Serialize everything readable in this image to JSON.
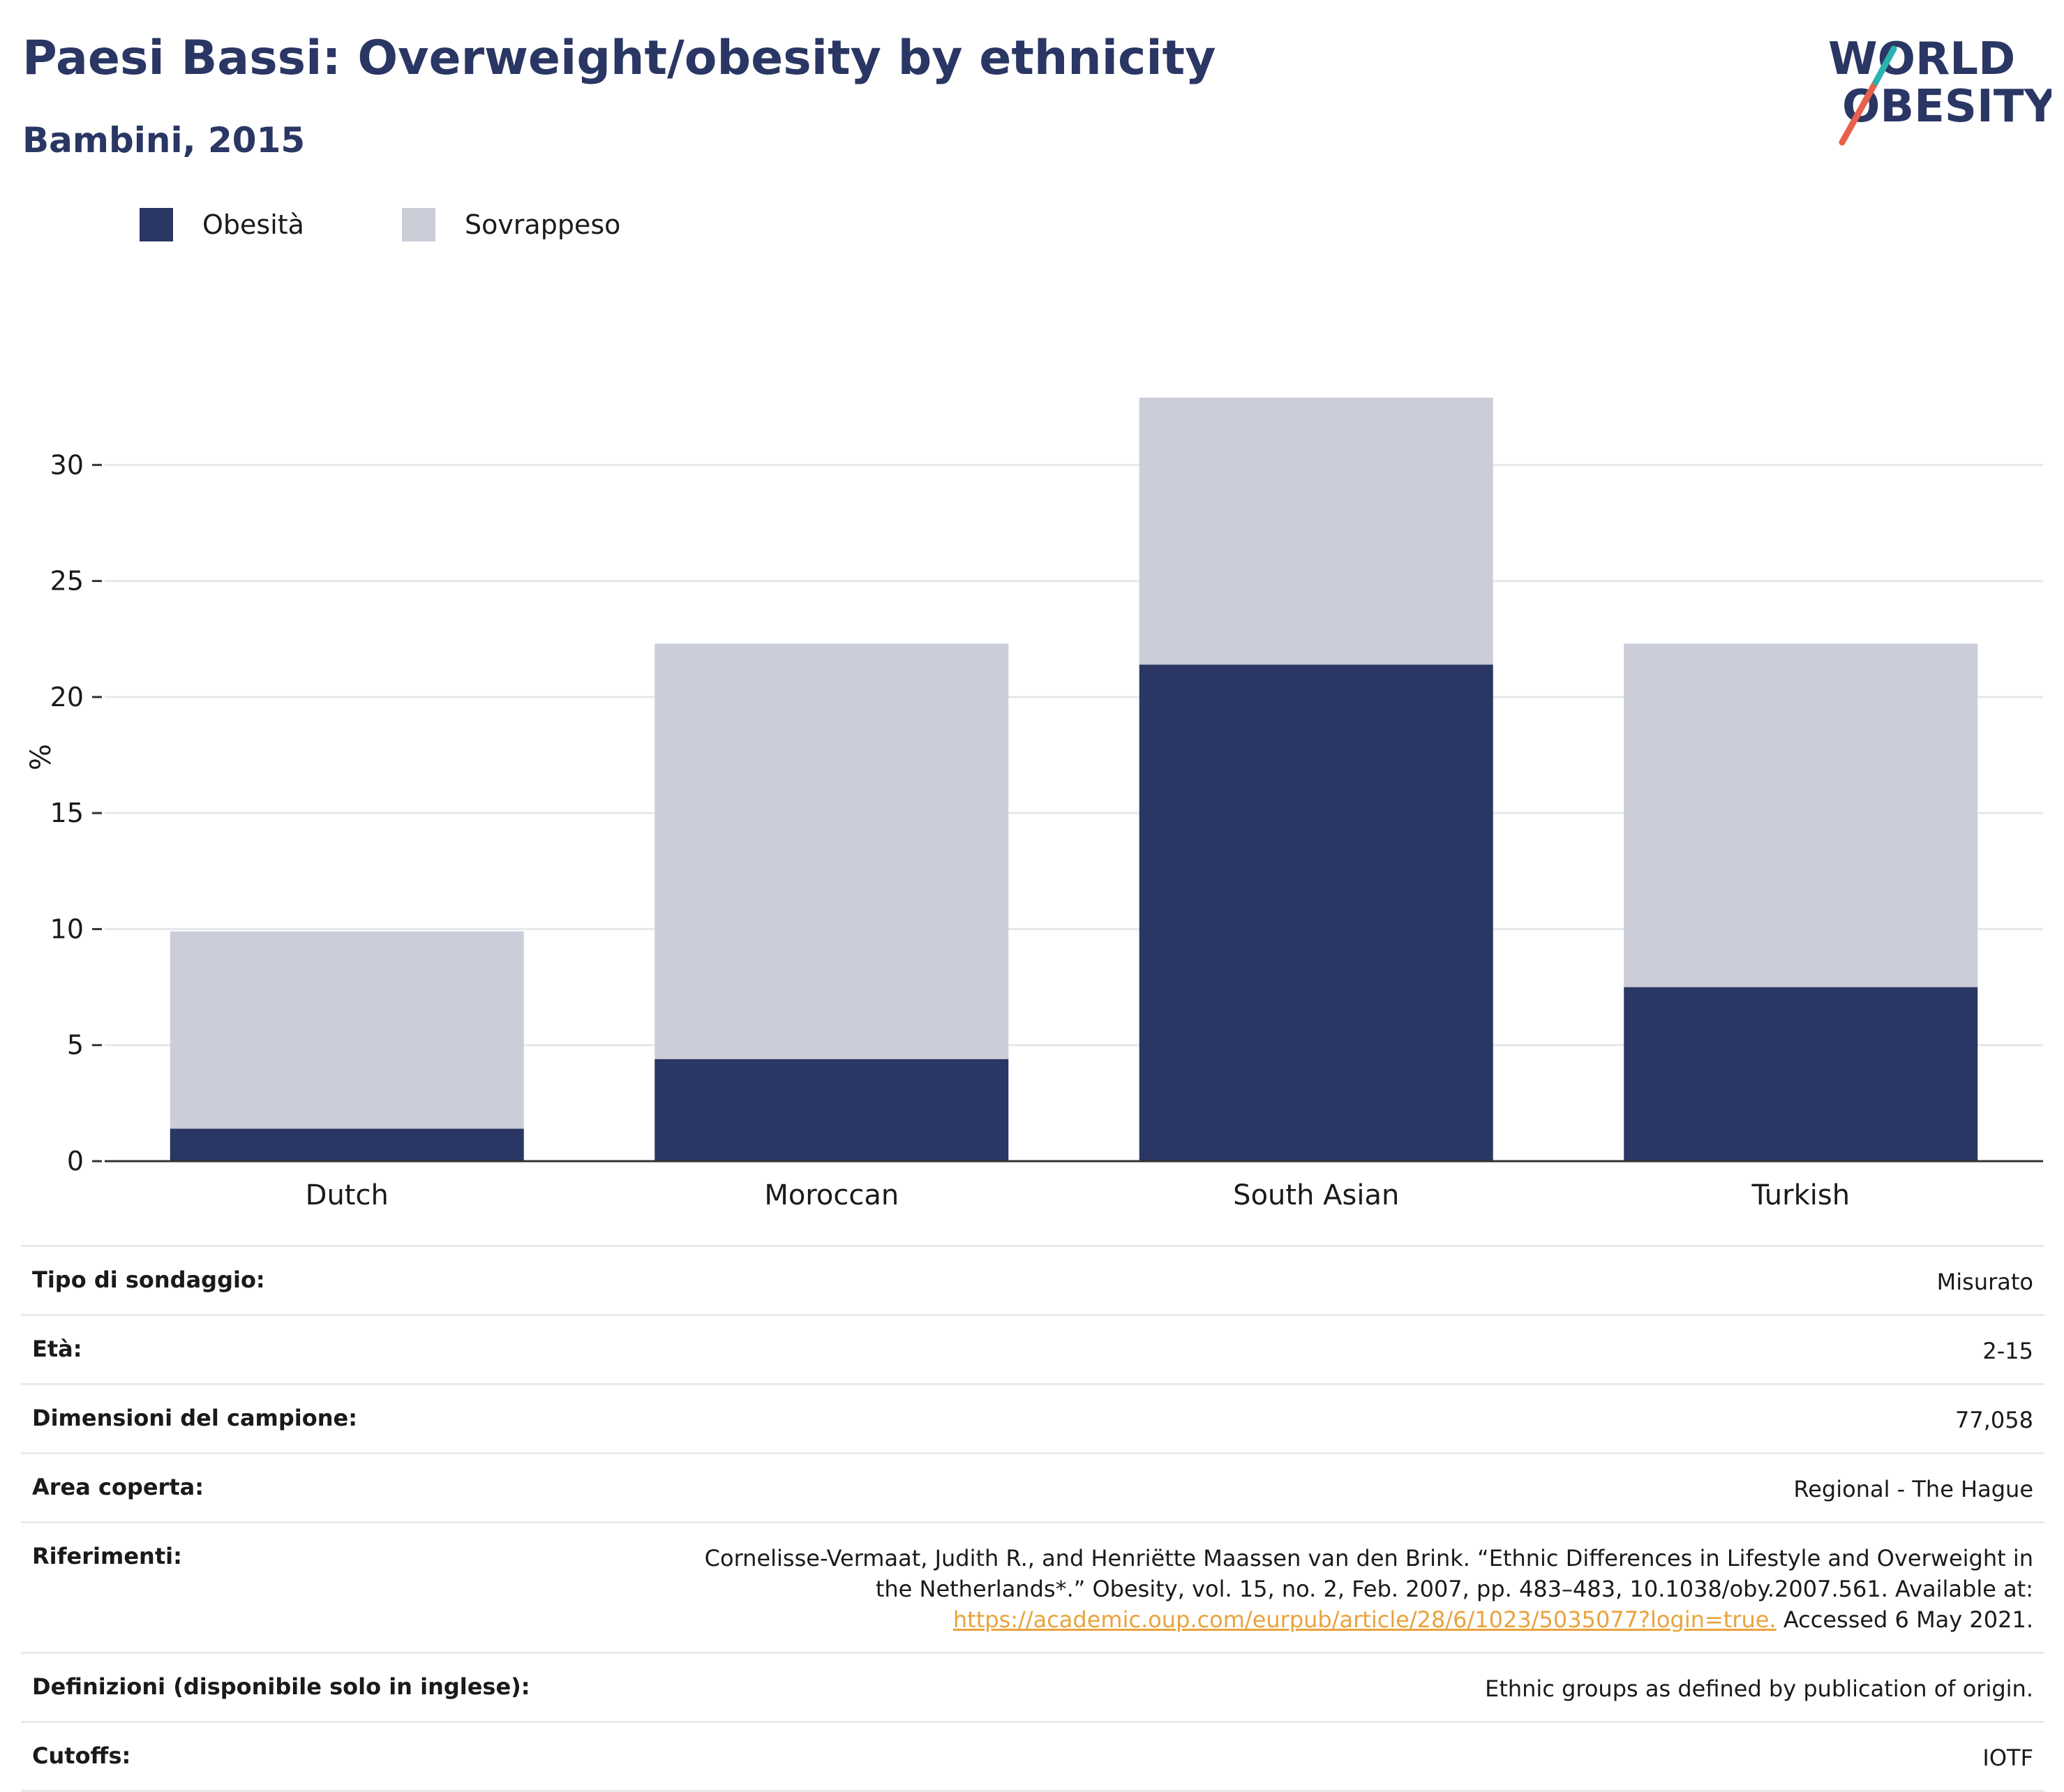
{
  "header": {
    "title": "Paesi Bassi: Overweight/obesity by ethnicity",
    "subtitle": "Bambini, 2015"
  },
  "logo": {
    "line1": "WORLD",
    "line2": "OBESITY"
  },
  "legend": [
    {
      "label": "Obesità",
      "color": "#2a3663"
    },
    {
      "label": "Sovrappeso",
      "color": "#cbcdd8"
    }
  ],
  "chart_data": {
    "type": "bar",
    "stacked": true,
    "categories": [
      "Dutch",
      "Moroccan",
      "South Asian",
      "Turkish"
    ],
    "series": [
      {
        "name": "Obesità",
        "values": [
          1.4,
          4.4,
          21.4,
          7.5
        ],
        "color": "#2a3663"
      },
      {
        "name": "Sovrappeso",
        "values": [
          8.5,
          17.9,
          11.5,
          14.8
        ],
        "color": "#cbcdd8"
      }
    ],
    "ylabel": "%",
    "ylim": [
      0,
      35
    ],
    "yticks": [
      0,
      5,
      10,
      15,
      20,
      25,
      30
    ],
    "grid": true,
    "legend_position": "top-left"
  },
  "info": {
    "survey_type": {
      "label": "Tipo di sondaggio:",
      "value": "Misurato"
    },
    "age": {
      "label": "Età:",
      "value": "2-15"
    },
    "sample_size": {
      "label": "Dimensioni del campione:",
      "value": "77,058"
    },
    "area": {
      "label": "Area coperta:",
      "value": "Regional - The Hague"
    },
    "references": {
      "label": "Riferimenti:",
      "text": "Cornelisse-Vermaat, Judith R., and Henriëtte Maassen van den Brink. “Ethnic Differences in Lifestyle and Overweight in the Netherlands*.” Obesity, vol. 15, no. 2, Feb. 2007, pp. 483–483, 10.1038/oby.2007.561. Available at:",
      "link": "https://academic.oup.com/eurpub/article/28/6/1023/5035077?login=true.",
      "accessed": "Accessed 6 May 2021."
    },
    "definitions": {
      "label": "Definizioni (disponibile solo in inglese):",
      "value": "Ethnic groups as defined by publication of origin."
    },
    "cutoffs": {
      "label": "Cutoffs:",
      "value": "IOTF"
    }
  }
}
